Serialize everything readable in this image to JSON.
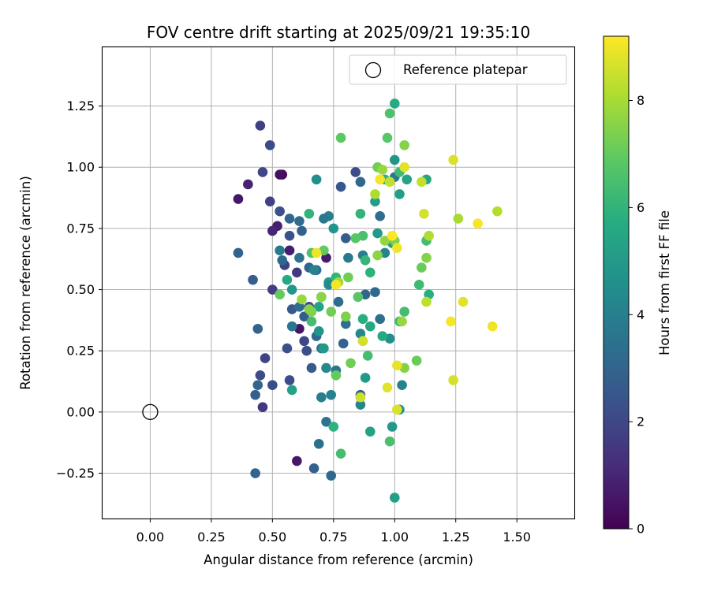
{
  "chart_data": {
    "type": "scatter",
    "title": "FOV centre drift starting at 2025/09/21 19:35:10",
    "xlabel": "Angular distance from reference (arcmin)",
    "ylabel": "Rotation from reference (arcmin)",
    "xlim": [
      -0.195,
      1.735
    ],
    "ylim": [
      -0.435,
      1.49
    ],
    "xticks": [
      0.0,
      0.25,
      0.5,
      0.75,
      1.0,
      1.25,
      1.5
    ],
    "xtick_labels": [
      "0.00",
      "0.25",
      "0.50",
      "0.75",
      "1.00",
      "1.25",
      "1.50"
    ],
    "yticks": [
      -0.25,
      0.0,
      0.25,
      0.5,
      0.75,
      1.0,
      1.25
    ],
    "ytick_labels": [
      "−0.25",
      "0.00",
      "0.25",
      "0.50",
      "0.75",
      "1.00",
      "1.25"
    ],
    "grid": true,
    "legend": {
      "position": "top-right",
      "entries": [
        "Reference platepar"
      ]
    },
    "reference": {
      "x": 0.0,
      "y": 0.0,
      "label": "Reference platepar"
    },
    "colorbar": {
      "label": "Hours from first FF file",
      "min": 0,
      "max": 9.2,
      "ticks": [
        0,
        2,
        4,
        6,
        8
      ],
      "tick_labels": [
        "0",
        "2",
        "4",
        "6",
        "8"
      ],
      "colormap": "viridis"
    },
    "series": [
      {
        "name": "FOV centre",
        "points": [
          {
            "x": 0.36,
            "y": 0.87,
            "h": 0.6
          },
          {
            "x": 0.4,
            "y": 0.93,
            "h": 0.9
          },
          {
            "x": 0.54,
            "y": 0.97,
            "h": 0.2
          },
          {
            "x": 0.53,
            "y": 0.97,
            "h": 0.4
          },
          {
            "x": 0.52,
            "y": 0.76,
            "h": 0.8
          },
          {
            "x": 0.5,
            "y": 0.74,
            "h": 1.0
          },
          {
            "x": 0.57,
            "y": 0.66,
            "h": 0.8
          },
          {
            "x": 0.61,
            "y": 0.34,
            "h": 0.5
          },
          {
            "x": 0.6,
            "y": -0.2,
            "h": 0.6
          },
          {
            "x": 0.72,
            "y": 0.63,
            "h": 0.7
          },
          {
            "x": 0.45,
            "y": 1.17,
            "h": 1.8
          },
          {
            "x": 0.49,
            "y": 1.09,
            "h": 2.1
          },
          {
            "x": 0.46,
            "y": 0.98,
            "h": 2.0
          },
          {
            "x": 0.49,
            "y": 0.86,
            "h": 1.8
          },
          {
            "x": 0.53,
            "y": 0.82,
            "h": 2.3
          },
          {
            "x": 0.57,
            "y": 0.72,
            "h": 2.3
          },
          {
            "x": 0.55,
            "y": 0.6,
            "h": 1.8
          },
          {
            "x": 0.6,
            "y": 0.57,
            "h": 1.6
          },
          {
            "x": 0.5,
            "y": 0.5,
            "h": 1.7
          },
          {
            "x": 0.47,
            "y": 0.22,
            "h": 1.9
          },
          {
            "x": 0.45,
            "y": 0.15,
            "h": 2.1
          },
          {
            "x": 0.5,
            "y": 0.11,
            "h": 2.2
          },
          {
            "x": 0.46,
            "y": 0.02,
            "h": 1.5
          },
          {
            "x": 0.56,
            "y": 0.26,
            "h": 2.3
          },
          {
            "x": 0.57,
            "y": 0.13,
            "h": 2.2
          },
          {
            "x": 0.63,
            "y": 0.29,
            "h": 2.0
          },
          {
            "x": 0.64,
            "y": 0.25,
            "h": 2.2
          },
          {
            "x": 0.65,
            "y": 0.43,
            "h": 2.1
          },
          {
            "x": 0.66,
            "y": 0.18,
            "h": 2.7
          },
          {
            "x": 0.44,
            "y": 0.34,
            "h": 3.0
          },
          {
            "x": 0.44,
            "y": 0.11,
            "h": 3.0
          },
          {
            "x": 0.43,
            "y": 0.07,
            "h": 2.8
          },
          {
            "x": 0.42,
            "y": 0.54,
            "h": 2.8
          },
          {
            "x": 0.36,
            "y": 0.65,
            "h": 2.9
          },
          {
            "x": 0.43,
            "y": -0.25,
            "h": 3.0
          },
          {
            "x": 0.67,
            "y": -0.23,
            "h": 2.9
          },
          {
            "x": 0.74,
            "y": -0.26,
            "h": 3.2
          },
          {
            "x": 0.69,
            "y": -0.13,
            "h": 3.4
          },
          {
            "x": 0.72,
            "y": -0.04,
            "h": 3.6
          },
          {
            "x": 0.7,
            "y": 0.06,
            "h": 3.9
          },
          {
            "x": 0.74,
            "y": 0.07,
            "h": 4.1
          },
          {
            "x": 0.58,
            "y": 0.42,
            "h": 2.6
          },
          {
            "x": 0.61,
            "y": 0.43,
            "h": 3.3
          },
          {
            "x": 0.63,
            "y": 0.39,
            "h": 2.7
          },
          {
            "x": 0.58,
            "y": 0.35,
            "h": 3.6
          },
          {
            "x": 0.61,
            "y": 0.63,
            "h": 3.5
          },
          {
            "x": 0.65,
            "y": 0.59,
            "h": 3.0
          },
          {
            "x": 0.68,
            "y": 0.58,
            "h": 3.2
          },
          {
            "x": 0.7,
            "y": 0.47,
            "h": 3.4
          },
          {
            "x": 0.68,
            "y": 0.31,
            "h": 3.1
          },
          {
            "x": 0.7,
            "y": 0.26,
            "h": 3.8
          },
          {
            "x": 0.73,
            "y": 0.8,
            "h": 3.9
          },
          {
            "x": 0.71,
            "y": 0.79,
            "h": 3.7
          },
          {
            "x": 0.62,
            "y": 0.74,
            "h": 2.9
          },
          {
            "x": 0.61,
            "y": 0.78,
            "h": 3.3
          },
          {
            "x": 0.57,
            "y": 0.79,
            "h": 3.1
          },
          {
            "x": 0.54,
            "y": 0.62,
            "h": 3.2
          },
          {
            "x": 0.53,
            "y": 0.66,
            "h": 3.8
          },
          {
            "x": 0.76,
            "y": 0.17,
            "h": 3.6
          },
          {
            "x": 0.77,
            "y": 0.45,
            "h": 3.3
          },
          {
            "x": 0.79,
            "y": 0.28,
            "h": 3.0
          },
          {
            "x": 0.8,
            "y": 0.36,
            "h": 3.5
          },
          {
            "x": 0.78,
            "y": 0.92,
            "h": 2.5
          },
          {
            "x": 0.8,
            "y": 0.71,
            "h": 2.7
          },
          {
            "x": 0.81,
            "y": 0.63,
            "h": 3.8
          },
          {
            "x": 0.84,
            "y": 0.98,
            "h": 2.1
          },
          {
            "x": 0.86,
            "y": 0.94,
            "h": 3.1
          },
          {
            "x": 0.86,
            "y": 0.32,
            "h": 4.3
          },
          {
            "x": 0.86,
            "y": 0.03,
            "h": 4.2
          },
          {
            "x": 0.86,
            "y": 0.07,
            "h": 2.8
          },
          {
            "x": 0.87,
            "y": 0.64,
            "h": 3.9
          },
          {
            "x": 0.88,
            "y": 0.14,
            "h": 5.0
          },
          {
            "x": 0.88,
            "y": 0.48,
            "h": 3.1
          },
          {
            "x": 0.92,
            "y": 0.49,
            "h": 3.2
          },
          {
            "x": 0.94,
            "y": 0.8,
            "h": 3.3
          },
          {
            "x": 0.94,
            "y": 0.38,
            "h": 3.4
          },
          {
            "x": 0.96,
            "y": 0.65,
            "h": 4.2
          },
          {
            "x": 0.98,
            "y": 0.3,
            "h": 4.6
          },
          {
            "x": 0.99,
            "y": -0.06,
            "h": 4.9
          },
          {
            "x": 1.0,
            "y": 0.96,
            "h": 3.7
          },
          {
            "x": 1.0,
            "y": 1.03,
            "h": 4.8
          },
          {
            "x": 1.02,
            "y": 0.01,
            "h": 4.6
          },
          {
            "x": 1.03,
            "y": 0.11,
            "h": 4.1
          },
          {
            "x": 1.02,
            "y": 0.89,
            "h": 5.2
          },
          {
            "x": 0.68,
            "y": 0.95,
            "h": 4.6
          },
          {
            "x": 0.75,
            "y": 0.75,
            "h": 4.8
          },
          {
            "x": 0.73,
            "y": 0.53,
            "h": 5.1
          },
          {
            "x": 0.69,
            "y": 0.33,
            "h": 4.8
          },
          {
            "x": 0.71,
            "y": 0.26,
            "h": 5.0
          },
          {
            "x": 0.58,
            "y": 0.09,
            "h": 5.3
          },
          {
            "x": 0.56,
            "y": 0.54,
            "h": 5.6
          },
          {
            "x": 0.58,
            "y": 0.5,
            "h": 4.9
          },
          {
            "x": 0.65,
            "y": 0.81,
            "h": 6.0
          },
          {
            "x": 0.66,
            "y": 0.65,
            "h": 6.6
          },
          {
            "x": 0.67,
            "y": 0.58,
            "h": 4.1
          },
          {
            "x": 0.69,
            "y": 0.43,
            "h": 5.3
          },
          {
            "x": 0.73,
            "y": 0.52,
            "h": 4.4
          },
          {
            "x": 0.72,
            "y": 0.18,
            "h": 4.3
          },
          {
            "x": 0.76,
            "y": 0.55,
            "h": 6.0
          },
          {
            "x": 0.75,
            "y": -0.06,
            "h": 5.9
          },
          {
            "x": 0.78,
            "y": -0.17,
            "h": 6.4
          },
          {
            "x": 0.86,
            "y": 0.81,
            "h": 6.0
          },
          {
            "x": 0.87,
            "y": 0.72,
            "h": 6.5
          },
          {
            "x": 0.87,
            "y": 0.38,
            "h": 5.8
          },
          {
            "x": 0.88,
            "y": 0.62,
            "h": 6.1
          },
          {
            "x": 0.9,
            "y": 0.57,
            "h": 5.9
          },
          {
            "x": 0.9,
            "y": 0.35,
            "h": 5.5
          },
          {
            "x": 0.92,
            "y": 0.86,
            "h": 5.1
          },
          {
            "x": 0.93,
            "y": 0.73,
            "h": 5.0
          },
          {
            "x": 0.95,
            "y": 0.31,
            "h": 5.6
          },
          {
            "x": 0.9,
            "y": -0.08,
            "h": 5.3
          },
          {
            "x": 0.96,
            "y": 0.95,
            "h": 5.9
          },
          {
            "x": 0.99,
            "y": 0.69,
            "h": 5.3
          },
          {
            "x": 1.0,
            "y": 1.26,
            "h": 5.7
          },
          {
            "x": 0.98,
            "y": 1.22,
            "h": 6.6
          },
          {
            "x": 0.97,
            "y": 1.12,
            "h": 6.8
          },
          {
            "x": 1.02,
            "y": 0.98,
            "h": 6.3
          },
          {
            "x": 1.05,
            "y": 0.95,
            "h": 5.4
          },
          {
            "x": 1.13,
            "y": 0.95,
            "h": 5.5
          },
          {
            "x": 1.13,
            "y": 0.7,
            "h": 6.4
          },
          {
            "x": 1.14,
            "y": 0.48,
            "h": 5.8
          },
          {
            "x": 1.1,
            "y": 0.52,
            "h": 6.3
          },
          {
            "x": 1.02,
            "y": 0.37,
            "h": 6.2
          },
          {
            "x": 1.04,
            "y": 0.41,
            "h": 6.4
          },
          {
            "x": 0.98,
            "y": -0.12,
            "h": 6.5
          },
          {
            "x": 1.0,
            "y": -0.35,
            "h": 5.2
          },
          {
            "x": 0.78,
            "y": 1.12,
            "h": 6.9
          },
          {
            "x": 0.84,
            "y": 0.71,
            "h": 6.8
          },
          {
            "x": 0.85,
            "y": 0.47,
            "h": 6.8
          },
          {
            "x": 0.87,
            "y": 0.29,
            "h": 6.9
          },
          {
            "x": 0.89,
            "y": 0.23,
            "h": 6.4
          },
          {
            "x": 0.82,
            "y": 0.2,
            "h": 7.2
          },
          {
            "x": 0.76,
            "y": 0.15,
            "h": 7.0
          },
          {
            "x": 0.66,
            "y": 0.41,
            "h": 7.4
          },
          {
            "x": 0.66,
            "y": 0.37,
            "h": 6.4
          },
          {
            "x": 0.7,
            "y": 0.47,
            "h": 7.6
          },
          {
            "x": 0.71,
            "y": 0.66,
            "h": 7.0
          },
          {
            "x": 0.77,
            "y": 0.53,
            "h": 7.9
          },
          {
            "x": 0.8,
            "y": 0.39,
            "h": 7.4
          },
          {
            "x": 0.81,
            "y": 0.55,
            "h": 7.2
          },
          {
            "x": 0.74,
            "y": 0.41,
            "h": 7.2
          },
          {
            "x": 0.53,
            "y": 0.48,
            "h": 7.0
          },
          {
            "x": 0.62,
            "y": 0.46,
            "h": 7.8
          },
          {
            "x": 0.65,
            "y": 0.42,
            "h": 7.5
          },
          {
            "x": 0.93,
            "y": 0.64,
            "h": 7.6
          },
          {
            "x": 0.96,
            "y": 0.7,
            "h": 7.7
          },
          {
            "x": 1.0,
            "y": 0.7,
            "h": 7.4
          },
          {
            "x": 1.09,
            "y": 0.21,
            "h": 7.1
          },
          {
            "x": 1.04,
            "y": 0.18,
            "h": 7.5
          },
          {
            "x": 1.03,
            "y": 0.37,
            "h": 7.8
          },
          {
            "x": 1.04,
            "y": 1.09,
            "h": 7.5
          },
          {
            "x": 0.93,
            "y": 1.0,
            "h": 7.2
          },
          {
            "x": 0.95,
            "y": 0.99,
            "h": 7.8
          },
          {
            "x": 0.92,
            "y": 0.89,
            "h": 8.1
          },
          {
            "x": 1.11,
            "y": 0.59,
            "h": 7.1
          },
          {
            "x": 1.13,
            "y": 0.63,
            "h": 7.5
          },
          {
            "x": 1.14,
            "y": 0.72,
            "h": 8.1
          },
          {
            "x": 1.13,
            "y": 0.45,
            "h": 8.3
          },
          {
            "x": 1.11,
            "y": 0.94,
            "h": 8.4
          },
          {
            "x": 1.12,
            "y": 0.81,
            "h": 8.6
          },
          {
            "x": 1.26,
            "y": 0.79,
            "h": 8.0
          },
          {
            "x": 1.24,
            "y": 1.03,
            "h": 8.7
          },
          {
            "x": 1.42,
            "y": 0.82,
            "h": 8.2
          },
          {
            "x": 1.28,
            "y": 0.45,
            "h": 8.8
          },
          {
            "x": 1.24,
            "y": 0.13,
            "h": 8.6
          },
          {
            "x": 0.86,
            "y": 0.06,
            "h": 8.5
          },
          {
            "x": 0.87,
            "y": 0.29,
            "h": 8.6
          },
          {
            "x": 0.98,
            "y": 0.94,
            "h": 8.4
          },
          {
            "x": 1.04,
            "y": 1.0,
            "h": 8.8
          },
          {
            "x": 0.94,
            "y": 0.95,
            "h": 9.1
          },
          {
            "x": 0.99,
            "y": 0.72,
            "h": 9.2
          },
          {
            "x": 1.01,
            "y": 0.67,
            "h": 9.0
          },
          {
            "x": 0.68,
            "y": 0.65,
            "h": 9.0
          },
          {
            "x": 0.76,
            "y": 0.52,
            "h": 9.1
          },
          {
            "x": 0.97,
            "y": 0.1,
            "h": 8.8
          },
          {
            "x": 1.01,
            "y": 0.19,
            "h": 8.9
          },
          {
            "x": 1.01,
            "y": 0.01,
            "h": 8.7
          },
          {
            "x": 1.23,
            "y": 0.37,
            "h": 9.1
          },
          {
            "x": 1.34,
            "y": 0.77,
            "h": 9.1
          },
          {
            "x": 1.4,
            "y": 0.35,
            "h": 9.0
          }
        ]
      }
    ]
  }
}
